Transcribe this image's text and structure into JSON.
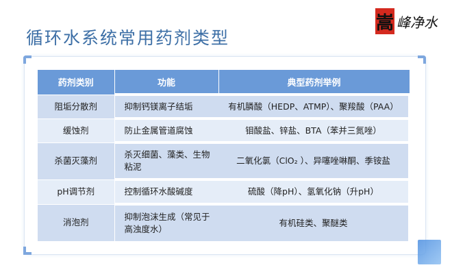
{
  "title": "循环水系统常用药剂类型",
  "logo": {
    "seal": "嵩",
    "text": "峰净水"
  },
  "table": {
    "headers": [
      "药剂类别",
      "功能",
      "典型药剂举例"
    ],
    "rows": [
      [
        "阻垢分散剂",
        "抑制钙镁离子结垢",
        "有机膦酸（HEDP、ATMP）、聚羧酸（PAA）"
      ],
      [
        "缓蚀剂",
        "防止金属管道腐蚀",
        "钼酸盐、锌盐、BTA（苯并三氮唑）"
      ],
      [
        "杀菌灭藻剂",
        "杀灭细菌、藻类、生物粘泥",
        "二氧化氯（ClO₂ ）、异噻唑啉酮、季铵盐"
      ],
      [
        "pH调节剂",
        "控制循环水酸碱度",
        "硫酸（降pH）、氢氧化钠（升pH）"
      ],
      [
        "消泡剂",
        "抑制泡沫生成（常见于高浊度水）",
        "有机硅类、聚醚类"
      ]
    ]
  },
  "colors": {
    "header": "#6a9ad8",
    "row_dark": "#cfdcf0",
    "row_light": "#e5edf8",
    "title": "#3d6fa6"
  }
}
